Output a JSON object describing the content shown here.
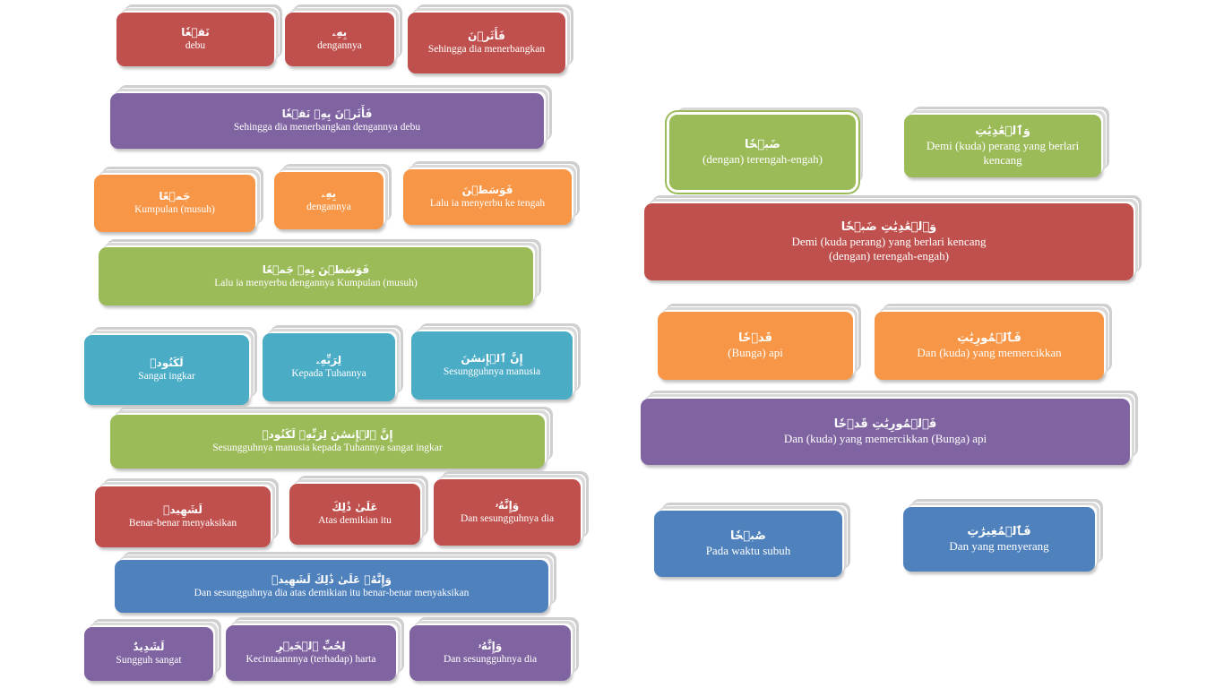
{
  "left": [
    {
      "ar": "نَقۡعٗا",
      "tr": "debu",
      "color": "red"
    },
    {
      "ar": "بِهِۦ",
      "tr": "dengannya",
      "color": "red"
    },
    {
      "ar": "فَأَثَرۡنَ",
      "tr": "Sehingga dia menerbangkan",
      "color": "red"
    },
    {
      "ar": "فَأَثَرۡنَ بِهِۦ نَقۡعٗا",
      "tr": "Sehingga dia menerbangkan dengannya debu",
      "color": "purple"
    },
    {
      "ar": "جَمۡعًا",
      "tr": "Kumpulan (musuh)",
      "color": "orange"
    },
    {
      "ar": "بِهِۦ",
      "tr": "dengannya",
      "color": "orange"
    },
    {
      "ar": "فَوَسَطۡنَ",
      "tr": "Lalu ia menyerbu  ke tengah",
      "color": "orange"
    },
    {
      "ar": "فَوَسَطۡنَ بِهِۦ جَمۡعًا",
      "tr": "Lalu ia menyerbu dengannya Kumpulan (musuh)",
      "color": "green"
    },
    {
      "ar": "لَكَنُودٞ",
      "tr": "Sangat ingkar",
      "color": "teal"
    },
    {
      "ar": "لِرَبِّهِۦ",
      "tr": "Kepada Tuhannya",
      "color": "teal"
    },
    {
      "ar": "إِنَّ ٱلۡإِنسَٰنَ",
      "tr": "Sesungguhnya manusia",
      "color": "teal"
    },
    {
      "ar": "إِنَّ ٱلۡإِنسَٰنَ لِرَبِّهِۦ لَكَنُودٞ",
      "tr": "Sesungguhnya manusia kepada Tuhannya sangat ingkar",
      "color": "green"
    },
    {
      "ar": "لَشَهِيدٞ",
      "tr": "Benar-benar  menyaksikan",
      "color": "red"
    },
    {
      "ar": "عَلَىٰ ذَٰلِكَ",
      "tr": "Atas demikian itu",
      "color": "red"
    },
    {
      "ar": "وَإِنَّهُۥ",
      "tr": "Dan sesungguhnya dia",
      "color": "red"
    },
    {
      "ar": "وَإِنَّهُۥ عَلَىٰ ذَٰلِكَ لَشَهِيدٞ",
      "tr": "Dan sesungguhnya dia atas demikian itu benar-benar  menyaksikan",
      "color": "blue"
    },
    {
      "ar": "لَشَدِيدٌ",
      "tr": "Sungguh sangat",
      "color": "purple"
    },
    {
      "ar": "لِحُبِّ ٱلۡخَيۡرِ",
      "tr": "Kecintaannnya (terhadap) harta",
      "color": "purple"
    },
    {
      "ar": "وَإِنَّهُۥ",
      "tr": "Dan sesungguhnya dia",
      "color": "purple"
    }
  ],
  "right": [
    {
      "ar": "ضَبۡحٗا",
      "tr": "(dengan) terengah-engah)",
      "color": "green"
    },
    {
      "ar": "وَٱلۡعَٰدِيَٰتِ",
      "tr": "Demi (kuda) perang yang berlari kencang",
      "color": "green"
    },
    {
      "ar": "وَٱلۡعَٰدِيَٰتِ ضَبۡحٗا",
      "tr": "Demi (kuda perang) yang berlari kencang",
      "tr2": "(dengan) terengah-engah)",
      "color": "red"
    },
    {
      "ar": "قَدۡحٗا",
      "tr": "(Bunga) api",
      "color": "orange"
    },
    {
      "ar": "فَٱلۡمُورِيَٰتِ",
      "tr": "Dan (kuda) yang memercikkan",
      "color": "orange"
    },
    {
      "ar": "فَٱلۡمُورِيَٰتِ قَدۡحٗا",
      "tr": "Dan (kuda) yang memercikkan (Bunga) api",
      "color": "purple"
    },
    {
      "ar": "صُبۡحٗا",
      "tr": "Pada waktu subuh",
      "color": "blue"
    },
    {
      "ar": "فَٱلۡمُغِيرَٰتِ",
      "tr": "Dan yang menyerang",
      "color": "blue"
    }
  ]
}
